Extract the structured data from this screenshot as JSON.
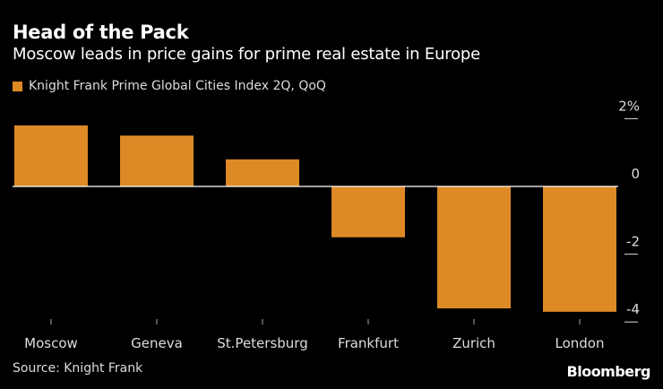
{
  "chart_data": {
    "type": "bar",
    "title": "Head of the Pack",
    "subtitle": "Moscow leads in price gains for prime real estate in Europe",
    "categories": [
      "Moscow",
      "Geneva",
      "St.Petersburg",
      "Frankfurt",
      "Zurich",
      "London"
    ],
    "series": [
      {
        "name": "Knight Frank Prime Global Cities Index 2Q, QoQ",
        "values": [
          1.8,
          1.5,
          0.8,
          -1.5,
          -3.6,
          -3.7
        ],
        "color": "#DD8A26"
      }
    ],
    "yticks": [
      2,
      0,
      -2,
      -4
    ],
    "ytick_labels": [
      "2%",
      "0",
      "-2",
      "-4"
    ],
    "ylim": [
      -4.4,
      2.6
    ],
    "yaxis_position": "right",
    "grid": false,
    "legend": "top-left",
    "xlabel": "",
    "ylabel": ""
  },
  "source": "Source: Knight Frank",
  "logo": "Bloomberg"
}
